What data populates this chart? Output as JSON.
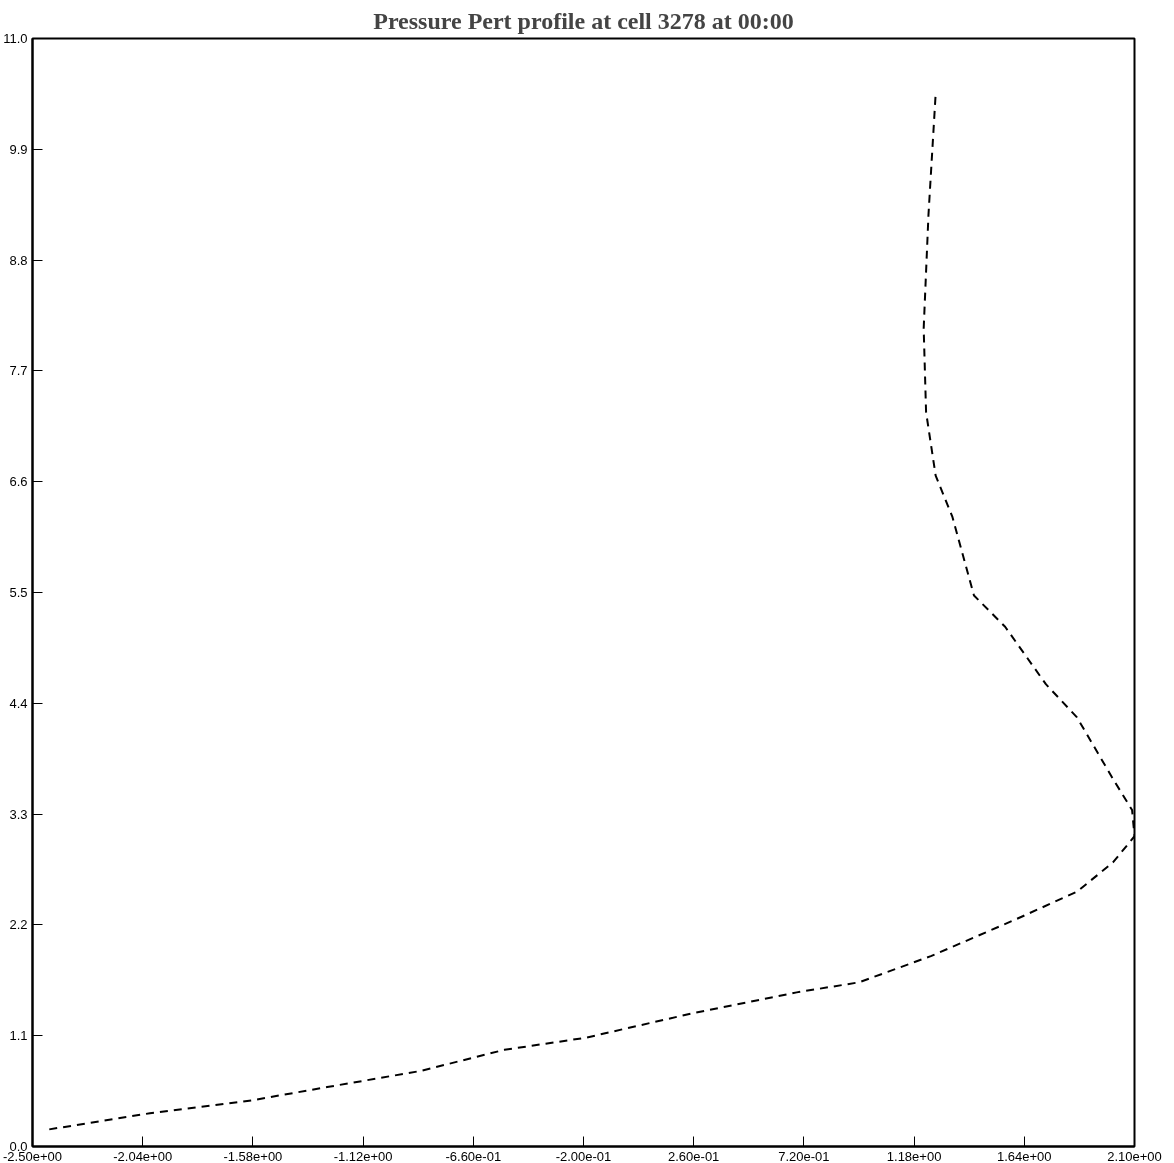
{
  "chart_data": {
    "type": "line",
    "title": "Pressure Pert profile at cell 3278 at 00:00",
    "series": [
      {
        "color": "#000000",
        "x": [
          -2.43,
          -2.01,
          -1.58,
          -1.27,
          -0.88,
          -0.53,
          -0.19,
          0.25,
          0.69,
          0.95,
          1.25,
          1.6,
          1.86,
          2.01,
          2.1,
          2.09,
          2.01,
          1.86,
          1.73,
          1.56,
          1.43,
          1.34,
          1.27,
          1.23,
          1.22,
          1.24,
          1.27
        ],
        "values": [
          0.17,
          0.33,
          0.46,
          0.59,
          0.75,
          0.96,
          1.08,
          1.32,
          1.53,
          1.63,
          1.89,
          2.25,
          2.53,
          2.82,
          3.08,
          3.34,
          3.65,
          4.26,
          4.59,
          5.16,
          5.47,
          6.25,
          6.66,
          7.29,
          8.12,
          9.25,
          10.45
        ]
      }
    ],
    "xlim": [
      -2.5,
      2.1
    ],
    "xticks": [
      {
        "value": -2.5,
        "label": "-2.50e+00"
      },
      {
        "value": -2.04,
        "label": "-2.04e+00"
      },
      {
        "value": -1.58,
        "label": "-1.58e+00"
      },
      {
        "value": -1.12,
        "label": "-1.12e+00"
      },
      {
        "value": -0.66,
        "label": "-6.60e-01"
      },
      {
        "value": -0.2,
        "label": "-2.00e-01"
      },
      {
        "value": 0.26,
        "label": "2.60e-01"
      },
      {
        "value": 0.72,
        "label": "7.20e-01"
      },
      {
        "value": 1.18,
        "label": "1.18e+00"
      },
      {
        "value": 1.64,
        "label": "1.64e+00"
      },
      {
        "value": 2.1,
        "label": "2.10e+00"
      }
    ],
    "ylim": [
      0,
      11
    ],
    "yticks": [
      {
        "value": 0,
        "label": "0.0"
      },
      {
        "value": 1.1,
        "label": "1.1"
      },
      {
        "value": 2.2,
        "label": "2.2"
      },
      {
        "value": 3.3,
        "label": "3.3"
      },
      {
        "value": 4.4,
        "label": "4.4"
      },
      {
        "value": 5.5,
        "label": "5.5"
      },
      {
        "value": 6.6,
        "label": "6.6"
      },
      {
        "value": 7.7,
        "label": "7.7"
      },
      {
        "value": 8.8,
        "label": "8.8"
      },
      {
        "value": 9.9,
        "label": "9.9"
      },
      {
        "value": 11,
        "label": "11.0"
      }
    ],
    "grid": false,
    "line_style": "dashed"
  }
}
